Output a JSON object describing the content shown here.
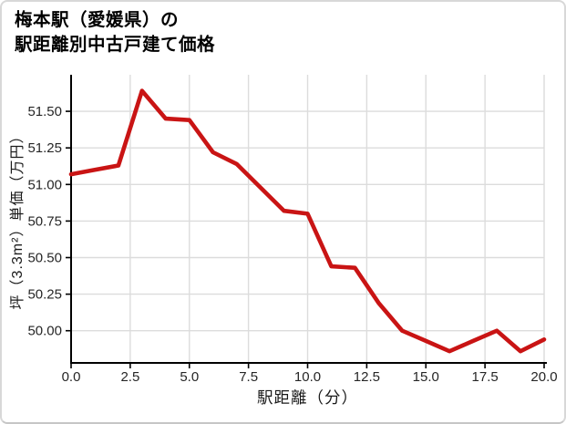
{
  "title": {
    "line1": "梅本駅（愛媛県）の",
    "line2": "駅距離別中古戸建て価格"
  },
  "chart_data": {
    "type": "line",
    "title": "梅本駅（愛媛県）の駅距離別中古戸建て価格",
    "xlabel": "駅距離（分）",
    "ylabel": "坪（3.3m²）単価（万円）",
    "x": [
      0,
      1,
      2,
      3,
      4,
      5,
      6,
      7,
      8,
      9,
      10,
      11,
      12,
      13,
      14,
      15,
      16,
      17,
      18,
      19,
      20
    ],
    "y": [
      51.07,
      51.1,
      51.13,
      51.64,
      51.45,
      51.44,
      51.22,
      51.14,
      50.98,
      50.82,
      50.8,
      50.44,
      50.43,
      50.19,
      50.0,
      49.93,
      49.86,
      49.93,
      50.0,
      49.86,
      49.94
    ],
    "xlim": [
      0,
      20
    ],
    "ylim": [
      49.78,
      51.75
    ],
    "x_tick_values": [
      0,
      2.5,
      5,
      7.5,
      10,
      12.5,
      15,
      17.5,
      20
    ],
    "x_tick_labels": [
      "0.0",
      "2.5",
      "5.0",
      "7.5",
      "10.0",
      "12.5",
      "15.0",
      "17.5",
      "20.0"
    ],
    "y_tick_values": [
      51.5,
      51.25,
      51.0,
      50.75,
      50.5,
      50.25,
      50.0
    ],
    "y_tick_labels": [
      "51.50",
      "51.25",
      "51.00",
      "50.75",
      "50.50",
      "50.25",
      "50.00"
    ],
    "grid": true,
    "legend": "none",
    "line_color": "#c91414",
    "grid_color": "#dcdcdc",
    "axis_color": "#000000"
  }
}
